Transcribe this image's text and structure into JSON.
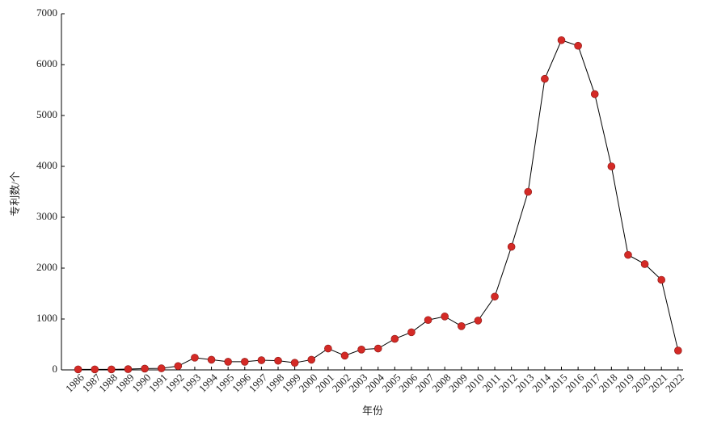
{
  "chart_data": {
    "type": "line",
    "xlabel": "年份",
    "ylabel": "专利数/个",
    "x": [
      1986,
      1987,
      1988,
      1989,
      1990,
      1991,
      1992,
      1993,
      1994,
      1995,
      1996,
      1997,
      1998,
      1999,
      2000,
      2001,
      2002,
      2003,
      2004,
      2005,
      2006,
      2007,
      2008,
      2009,
      2010,
      2011,
      2012,
      2013,
      2014,
      2015,
      2016,
      2017,
      2018,
      2019,
      2020,
      2021,
      2022
    ],
    "series": [
      {
        "name": "专利数",
        "color": "#d42a26",
        "line_color": "#000000",
        "values": [
          10,
          10,
          10,
          15,
          25,
          30,
          75,
          240,
          200,
          160,
          160,
          190,
          180,
          140,
          200,
          420,
          280,
          400,
          420,
          610,
          740,
          980,
          1050,
          860,
          970,
          1440,
          2420,
          3500,
          5720,
          6480,
          6370,
          5420,
          4000,
          2260,
          2080,
          1770,
          380
        ]
      }
    ],
    "xlim": [
      1985,
      2022.3
    ],
    "xticks": [
      1986,
      1987,
      1988,
      1989,
      1990,
      1991,
      1992,
      1993,
      1994,
      1995,
      1996,
      1997,
      1998,
      1999,
      2000,
      2001,
      2002,
      2003,
      2004,
      2005,
      2006,
      2007,
      2008,
      2009,
      2010,
      2011,
      2012,
      2013,
      2014,
      2015,
      2016,
      2017,
      2018,
      2019,
      2020,
      2021,
      2022
    ],
    "ylim": [
      0,
      7000
    ],
    "yticks": [
      0,
      1000,
      2000,
      3000,
      4000,
      5000,
      6000,
      7000
    ]
  }
}
